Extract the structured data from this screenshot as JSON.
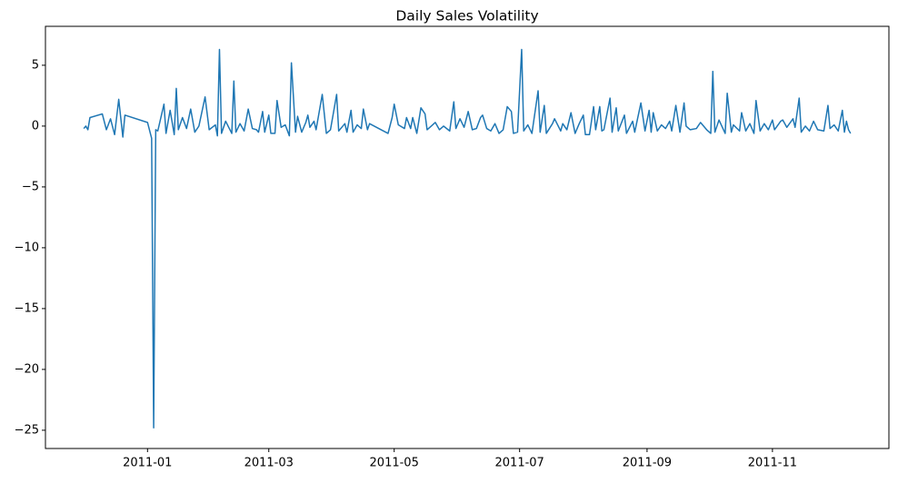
{
  "chart_data": {
    "type": "line",
    "title": "Daily Sales Volatility",
    "x": [
      14944,
      14945,
      14946,
      14947,
      14953,
      14955,
      14957,
      14959,
      14961,
      14963,
      14964,
      14975,
      14977,
      14978,
      14979,
      14980,
      14983,
      14984,
      14986,
      14988,
      14989,
      14990,
      14992,
      14994,
      14996,
      14998,
      15000,
      15003,
      15005,
      15008,
      15009,
      15010,
      15011,
      15013,
      15016,
      15017,
      15018,
      15020,
      15022,
      15024,
      15026,
      15028,
      15029,
      15031,
      15032,
      15034,
      15035,
      15037,
      15038,
      15040,
      15042,
      15044,
      15045,
      15047,
      15048,
      15050,
      15052,
      15053,
      15054,
      15056,
      15057,
      15060,
      15062,
      15064,
      15067,
      15068,
      15071,
      15072,
      15074,
      15075,
      15077,
      15079,
      15080,
      15082,
      15083,
      15092,
      15094,
      15095,
      15097,
      15100,
      15101,
      15103,
      15104,
      15106,
      15108,
      15110,
      15111,
      15113,
      15115,
      15117,
      15119,
      15122,
      15124,
      15125,
      15127,
      15129,
      15131,
      15133,
      15135,
      15137,
      15138,
      15140,
      15142,
      15144,
      15146,
      15148,
      15150,
      15152,
      15153,
      15155,
      15157,
      15158,
      15160,
      15162,
      15165,
      15166,
      15168,
      15169,
      15172,
      15173,
      15176,
      15177,
      15179,
      15181,
      15183,
      15185,
      15187,
      15188,
      15190,
      15192,
      15193,
      15195,
      15196,
      15197,
      15200,
      15201,
      15203,
      15204,
      15207,
      15208,
      15211,
      15212,
      15215,
      15217,
      15219,
      15220,
      15221,
      15223,
      15225,
      15227,
      15229,
      15230,
      15232,
      15234,
      15236,
      15237,
      15239,
      15242,
      15244,
      15247,
      15249,
      15250,
      15251,
      15253,
      15256,
      15257,
      15259,
      15260,
      15263,
      15264,
      15266,
      15268,
      15270,
      15271,
      15273,
      15275,
      15277,
      15279,
      15280,
      15283,
      15284,
      15286,
      15289,
      15290,
      15292,
      15293,
      15295,
      15297,
      15299,
      15301,
      15304,
      15306,
      15307,
      15309,
      15311,
      15313,
      15314,
      15315,
      15316,
      15317
    ],
    "series": [
      {
        "color": "#1f77b4",
        "values": [
          -0.2,
          0,
          -0.3,
          0.7,
          1.0,
          -0.3,
          0.6,
          -0.7,
          2.2,
          -0.9,
          0.9,
          0.3,
          -1.0,
          -24.8,
          -0.3,
          -0.4,
          1.8,
          -0.6,
          1.3,
          -0.7,
          3.1,
          -0.3,
          0.7,
          -0.2,
          1.4,
          -0.5,
          0.0,
          2.4,
          -0.3,
          0.1,
          -0.8,
          6.3,
          -0.6,
          0.4,
          -0.6,
          3.7,
          -0.5,
          0.2,
          -0.4,
          1.4,
          -0.2,
          -0.3,
          -0.5,
          1.2,
          -0.5,
          0.9,
          -0.6,
          -0.6,
          2.1,
          -0.1,
          0.1,
          -0.8,
          5.2,
          -0.5,
          0.8,
          -0.5,
          0.3,
          0.9,
          -0.1,
          0.4,
          -0.3,
          2.6,
          -0.6,
          -0.3,
          2.6,
          -0.4,
          0.2,
          -0.5,
          1.3,
          -0.5,
          0.1,
          -0.2,
          1.4,
          -0.3,
          0.2,
          -0.6,
          0.7,
          1.8,
          0.1,
          -0.2,
          0.7,
          -0.2,
          0.7,
          -0.6,
          1.5,
          1.0,
          -0.3,
          0.0,
          0.3,
          -0.3,
          0.0,
          -0.4,
          2.0,
          -0.2,
          0.6,
          -0.1,
          1.2,
          -0.3,
          -0.2,
          0.7,
          0.9,
          -0.2,
          -0.4,
          0.2,
          -0.6,
          -0.3,
          1.6,
          1.2,
          -0.6,
          -0.5,
          6.3,
          -0.4,
          0.1,
          -0.6,
          2.9,
          -0.5,
          1.7,
          -0.6,
          0.2,
          0.6,
          -0.4,
          0.2,
          -0.3,
          1.1,
          -0.6,
          0.2,
          0.9,
          -0.7,
          -0.7,
          1.6,
          -0.3,
          1.6,
          -0.4,
          -0.3,
          2.3,
          -0.5,
          1.5,
          -0.4,
          0.9,
          -0.6,
          0.4,
          -0.5,
          1.9,
          -0.4,
          1.3,
          -0.5,
          1.1,
          -0.4,
          0.1,
          -0.2,
          0.4,
          -0.4,
          1.7,
          -0.5,
          1.9,
          0.0,
          -0.3,
          -0.2,
          0.3,
          -0.3,
          -0.6,
          4.5,
          -0.5,
          0.5,
          -0.6,
          2.7,
          -0.5,
          0.1,
          -0.4,
          1.1,
          -0.4,
          0.2,
          -0.6,
          2.1,
          -0.4,
          0.2,
          -0.3,
          0.5,
          -0.3,
          0.4,
          0.5,
          -0.1,
          0.6,
          -0.1,
          2.3,
          -0.5,
          0.0,
          -0.4,
          0.4,
          -0.3,
          -0.4,
          1.7,
          -0.2,
          0.1,
          -0.4,
          1.3,
          -0.5,
          0.4,
          -0.3,
          -0.6
        ]
      }
    ],
    "xlim": [
      14925.35,
      15335.65
    ],
    "xticks": [
      {
        "value": 14975,
        "label": "2011-01"
      },
      {
        "value": 15034,
        "label": "2011-03"
      },
      {
        "value": 15095,
        "label": "2011-05"
      },
      {
        "value": 15156,
        "label": "2011-07"
      },
      {
        "value": 15218,
        "label": "2011-09"
      },
      {
        "value": 15279,
        "label": "2011-11"
      }
    ],
    "ylim": [
      -26.5,
      8.2
    ],
    "yticks": [
      {
        "value": -25,
        "label": "−25"
      },
      {
        "value": -20,
        "label": "−20"
      },
      {
        "value": -15,
        "label": "−15"
      },
      {
        "value": -10,
        "label": "−10"
      },
      {
        "value": -5,
        "label": "−5"
      },
      0,
      5
    ]
  }
}
